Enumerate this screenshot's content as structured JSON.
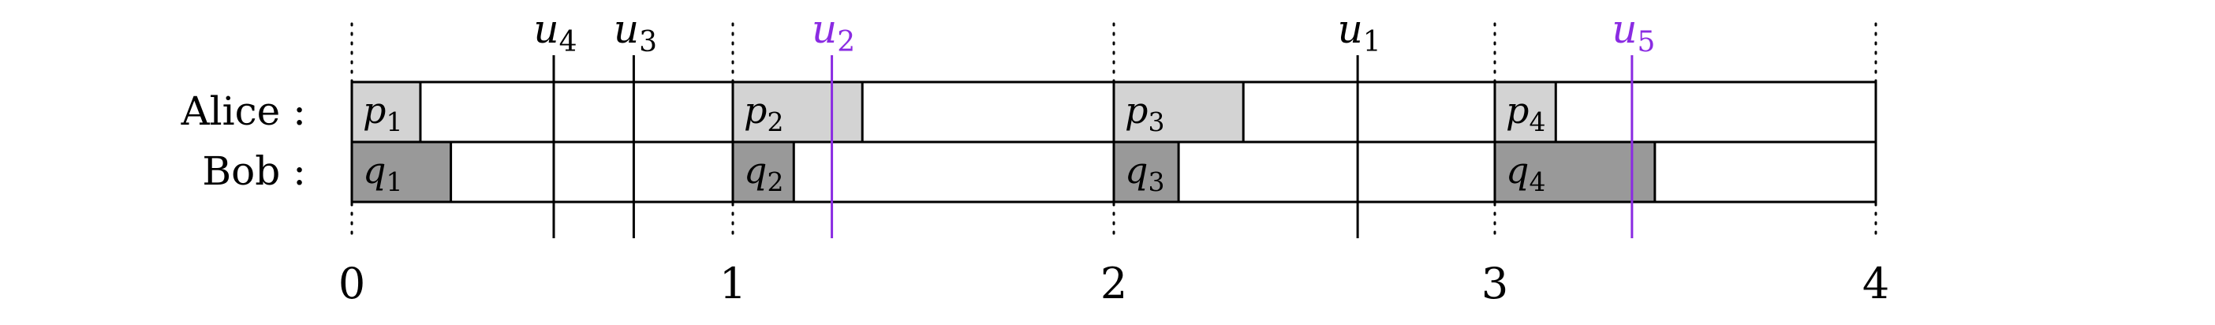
{
  "rows": [
    {
      "label": "Alice :",
      "segments": [
        {
          "name": "p",
          "sub": "1",
          "start": 0.0,
          "end": 0.18,
          "fill": "#d3d3d3"
        },
        {
          "name": "p",
          "sub": "2",
          "start": 1.0,
          "end": 1.34,
          "fill": "#d3d3d3"
        },
        {
          "name": "p",
          "sub": "3",
          "start": 2.0,
          "end": 2.34,
          "fill": "#d3d3d3"
        },
        {
          "name": "p",
          "sub": "4",
          "start": 3.0,
          "end": 3.16,
          "fill": "#d3d3d3"
        }
      ]
    },
    {
      "label": "Bob :",
      "segments": [
        {
          "name": "q",
          "sub": "1",
          "start": 0.0,
          "end": 0.26,
          "fill": "#999999"
        },
        {
          "name": "q",
          "sub": "2",
          "start": 1.0,
          "end": 1.16,
          "fill": "#999999"
        },
        {
          "name": "q",
          "sub": "3",
          "start": 2.0,
          "end": 2.17,
          "fill": "#999999"
        },
        {
          "name": "q",
          "sub": "4",
          "start": 3.0,
          "end": 3.42,
          "fill": "#999999"
        }
      ]
    }
  ],
  "markers": [
    {
      "name": "u",
      "sub": "4",
      "x": 0.53,
      "color": "#000000"
    },
    {
      "name": "u",
      "sub": "3",
      "x": 0.74,
      "color": "#000000"
    },
    {
      "name": "u",
      "sub": "2",
      "x": 1.26,
      "color": "#8a2be2"
    },
    {
      "name": "u",
      "sub": "1",
      "x": 2.64,
      "color": "#000000"
    },
    {
      "name": "u",
      "sub": "5",
      "x": 3.36,
      "color": "#8a2be2"
    }
  ],
  "ticks": [
    {
      "value": 0,
      "label": "0"
    },
    {
      "value": 1,
      "label": "1"
    },
    {
      "value": 2,
      "label": "2"
    },
    {
      "value": 3,
      "label": "3"
    },
    {
      "value": 4,
      "label": "4"
    }
  ],
  "axis": {
    "min": 0,
    "max": 4
  }
}
